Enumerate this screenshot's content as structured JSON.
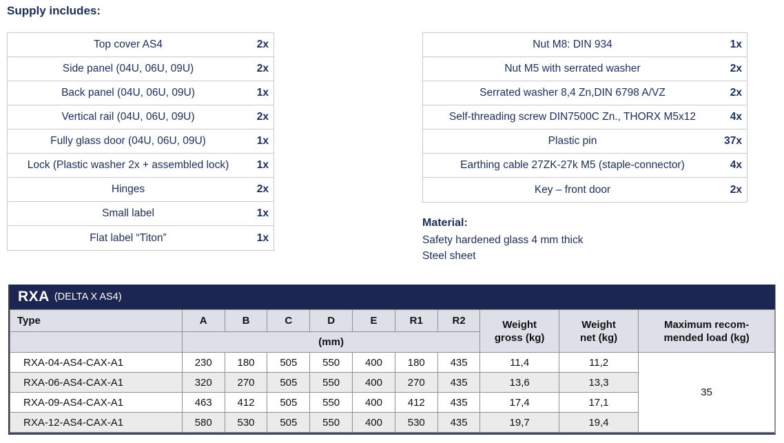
{
  "title": "Supply includes:",
  "supply_left": [
    {
      "name": "Top cover AS4",
      "qty": "2x"
    },
    {
      "name": "Side panel (04U, 06U, 09U)",
      "qty": "2x"
    },
    {
      "name": "Back panel (04U, 06U, 09U)",
      "qty": "1x"
    },
    {
      "name": "Vertical rail (04U, 06U, 09U)",
      "qty": "2x"
    },
    {
      "name": "Fully glass door (04U, 06U, 09U)",
      "qty": "1x"
    },
    {
      "name": "Lock (Plastic washer 2x + assembled lock)",
      "qty": "1x"
    },
    {
      "name": "Hinges",
      "qty": "2x"
    },
    {
      "name": "Small label",
      "qty": "1x"
    },
    {
      "name": "Flat label “Titon”",
      "qty": "1x"
    }
  ],
  "supply_right": [
    {
      "name": "Nut M8: DIN 934",
      "qty": "1x"
    },
    {
      "name": "Nut M5 with serrated washer",
      "qty": "2x"
    },
    {
      "name": "Serrated washer 8,4 Zn,DIN 6798 A/VZ",
      "qty": "2x"
    },
    {
      "name": "Self-threading screw DIN7500C Zn., THORX M5x12",
      "qty": "4x"
    },
    {
      "name": "Plastic pin",
      "qty": "37x"
    },
    {
      "name": "Earthing cable 27ZK-27k M5 (staple-connector)",
      "qty": "4x"
    },
    {
      "name": "Key – front door",
      "qty": "2x"
    }
  ],
  "material": {
    "title": "Material:",
    "lines": [
      "Safety hardened glass 4 mm thick",
      "Steel sheet"
    ]
  },
  "spec": {
    "band_title": "RXA",
    "band_subtitle": "(DELTA X AS4)",
    "type_label": "Type",
    "dim_columns": [
      "A",
      "B",
      "C",
      "D",
      "E",
      "R1",
      "R2"
    ],
    "unit_label": "(mm)",
    "weight_gross_lines": [
      "Weight",
      "gross (kg)"
    ],
    "weight_net_lines": [
      "Weight",
      "net (kg)"
    ],
    "max_load_lines": [
      "Maximum recom-",
      "mended load (kg)"
    ],
    "rows": [
      {
        "type": "RXA-04-AS4-CAX-A1",
        "dims": [
          "230",
          "180",
          "505",
          "550",
          "400",
          "180",
          "435"
        ],
        "gross": "11,4",
        "net": "11,2"
      },
      {
        "type": "RXA-06-AS4-CAX-A1",
        "dims": [
          "320",
          "270",
          "505",
          "550",
          "400",
          "270",
          "435"
        ],
        "gross": "13,6",
        "net": "13,3"
      },
      {
        "type": "RXA-09-AS4-CAX-A1",
        "dims": [
          "463",
          "412",
          "505",
          "550",
          "400",
          "412",
          "435"
        ],
        "gross": "17,4",
        "net": "17,1"
      },
      {
        "type": "RXA-12-AS4-CAX-A1",
        "dims": [
          "580",
          "530",
          "505",
          "550",
          "400",
          "530",
          "435"
        ],
        "gross": "19,7",
        "net": "19,4"
      }
    ],
    "max_load_value": "35"
  },
  "colors": {
    "navy_band": "#1b2653",
    "navy_text": "#1b2d5b",
    "header_bg": "#dfdfea",
    "stripe_bg": "#ebebeb",
    "grid_border": "#8f8f8f",
    "light_border": "#c9c9c9"
  }
}
